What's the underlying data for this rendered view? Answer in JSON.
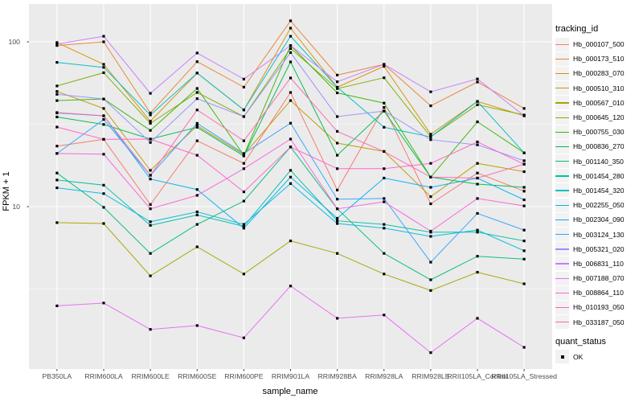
{
  "figure": {
    "y_axis_title": "FPKM + 1",
    "x_axis_title": "sample_name",
    "y_tick_labels": [
      "100",
      "10"
    ],
    "panel_bg": "#EBEBEB",
    "grid_color": "#FFFFFF",
    "tick_text_color": "#4D4D4D",
    "point_color": "#000000"
  },
  "legend": {
    "title": "tracking_id",
    "quant_title": "quant_status",
    "quant_entries": [
      {
        "label": "OK",
        "shape": "square",
        "color": "#000000"
      }
    ]
  },
  "chart_data": {
    "type": "line",
    "title": "",
    "xlabel": "sample_name",
    "ylabel": "FPKM + 1",
    "y_scale": "log10",
    "ylim": [
      1.03,
      168
    ],
    "y_major_ticks": [
      10,
      100
    ],
    "y_minor_ticks": [
      3.162,
      31.62
    ],
    "grid": true,
    "legend_position": "right",
    "point_shape": "filled-square",
    "categories": [
      "PB350LA",
      "RRIM600LA",
      "RRIM600LE",
      "RRIM600SE",
      "RRIM600PE",
      "RRIM901LA",
      "RRIM928BA",
      "RRIM928LA",
      "RRIM928LE",
      "RRII105LA_Control",
      "RRII105LA_Stressed"
    ],
    "series": [
      {
        "name": "Hb_000107_500",
        "color": "#F8766D",
        "values": [
          23.3,
          25.6,
          10.3,
          25.1,
          18.3,
          49.3,
          12.6,
          40.0,
          10.4,
          16.0,
          12.4
        ]
      },
      {
        "name": "Hb_000173_510",
        "color": "#EA8331",
        "values": [
          95.0,
          100.0,
          37.0,
          75.8,
          53.1,
          134.0,
          62.8,
          73.0,
          40.9,
          57.0,
          39.4
        ]
      },
      {
        "name": "Hb_000283_070",
        "color": "#D89000",
        "values": [
          99.0,
          73.0,
          33.0,
          64.6,
          38.6,
          121.0,
          53.0,
          71.0,
          27.5,
          43.5,
          35.6
        ]
      },
      {
        "name": "Hb_000510_310",
        "color": "#C09B00",
        "values": [
          50.0,
          39.4,
          16.6,
          31.0,
          20.7,
          44.0,
          24.3,
          21.6,
          11.5,
          18.3,
          16.3
        ]
      },
      {
        "name": "Hb_000567_010",
        "color": "#A3A500",
        "values": [
          8.0,
          7.9,
          3.8,
          5.7,
          3.9,
          6.2,
          5.2,
          3.9,
          3.1,
          4.0,
          3.4
        ]
      },
      {
        "name": "Hb_000645_120",
        "color": "#7CAE00",
        "values": [
          54.0,
          65.0,
          32.0,
          49.3,
          35.2,
          91.0,
          52.0,
          60.5,
          26.5,
          41.5,
          36.0
        ]
      },
      {
        "name": "Hb_000755_030",
        "color": "#39B600",
        "values": [
          44.0,
          45.0,
          29.0,
          52.1,
          20.5,
          95.0,
          49.0,
          42.5,
          15.1,
          32.7,
          21.2
        ]
      },
      {
        "name": "Hb_000836_270",
        "color": "#00BB4E",
        "values": [
          35.0,
          31.5,
          25.7,
          30.3,
          20.3,
          75.5,
          20.5,
          38.0,
          15.1,
          13.7,
          13.1
        ]
      },
      {
        "name": "Hb_001140_350",
        "color": "#00BF7D",
        "values": [
          16.0,
          9.9,
          5.2,
          7.8,
          10.8,
          23.0,
          9.7,
          5.2,
          3.6,
          5.0,
          4.8
        ]
      },
      {
        "name": "Hb_001454_280",
        "color": "#00C1A3",
        "values": [
          14.5,
          13.5,
          7.7,
          8.9,
          7.6,
          16.6,
          8.2,
          7.8,
          7.0,
          7.0,
          6.2
        ]
      },
      {
        "name": "Hb_001454_320",
        "color": "#00BFC4",
        "values": [
          75.0,
          70.0,
          36.0,
          64.6,
          38.6,
          108.0,
          53.0,
          30.3,
          26.5,
          43.5,
          21.2
        ]
      },
      {
        "name": "Hb_002255_050",
        "color": "#00BAE0",
        "values": [
          13.0,
          12.0,
          8.1,
          9.3,
          7.8,
          13.8,
          7.9,
          7.4,
          6.6,
          7.2,
          5.4
        ]
      },
      {
        "name": "Hb_002304_090",
        "color": "#00B0F6",
        "values": [
          37.0,
          35.6,
          14.7,
          12.7,
          7.4,
          15.1,
          8.5,
          14.9,
          13.1,
          14.9,
          11.0
        ]
      },
      {
        "name": "Hb_003124_130",
        "color": "#35A2FF",
        "values": [
          21.0,
          33.8,
          15.5,
          32.0,
          21.0,
          32.1,
          11.1,
          11.2,
          4.6,
          9.1,
          7.2
        ]
      },
      {
        "name": "Hb_005321_020",
        "color": "#9590FF",
        "values": [
          48.0,
          45.0,
          24.5,
          45.2,
          35.2,
          86.0,
          35.2,
          38.0,
          25.5,
          23.7,
          19.0
        ]
      },
      {
        "name": "Hb_006831_110",
        "color": "#C77CFF",
        "values": [
          97.0,
          108.0,
          48.7,
          85.5,
          59.4,
          95.0,
          57.2,
          73.0,
          49.7,
          59.5,
          35.6
        ]
      },
      {
        "name": "Hb_007188_070",
        "color": "#E76BF3",
        "values": [
          2.5,
          2.6,
          1.8,
          1.9,
          1.6,
          3.3,
          2.1,
          2.2,
          1.3,
          2.1,
          1.4
        ]
      },
      {
        "name": "Hb_008864_110",
        "color": "#FA62DB",
        "values": [
          21.0,
          20.8,
          9.7,
          11.7,
          17.0,
          25.7,
          9.7,
          10.7,
          7.1,
          11.2,
          10.1
        ]
      },
      {
        "name": "Hb_010193_050",
        "color": "#FF61CC",
        "values": [
          30.4,
          25.6,
          25.7,
          20.5,
          12.3,
          23.0,
          17.0,
          17.0,
          18.3,
          24.7,
          18.1
        ]
      },
      {
        "name": "Hb_033187_050",
        "color": "#FF65AE",
        "values": [
          37.2,
          35.6,
          15.5,
          38.6,
          25.1,
          60.3,
          28.6,
          21.6,
          15.1,
          14.9,
          18.1
        ]
      }
    ]
  }
}
